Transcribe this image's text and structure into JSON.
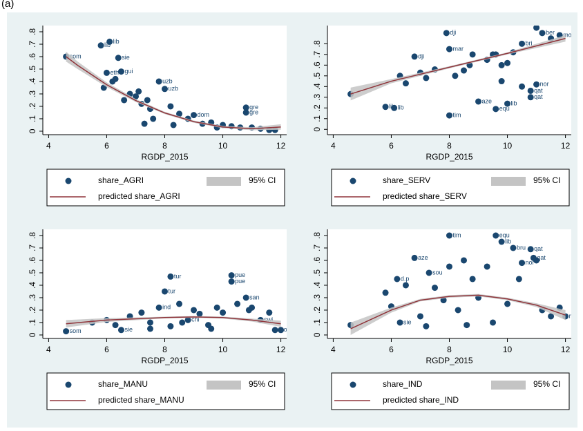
{
  "panel_label": "(a)",
  "chart_data": [
    {
      "type": "scatter",
      "xlabel": "RGDP_2015",
      "xlim": [
        3.8,
        12.2
      ],
      "xticks": [
        4,
        6,
        8,
        10,
        12
      ],
      "ylim": [
        -0.028,
        0.85
      ],
      "yticks": [
        0,
        {
          "value": 0.1,
          "label": ".1"
        },
        {
          "value": 0.2,
          "label": ".2"
        },
        {
          "value": 0.3,
          "label": ".3"
        },
        {
          "value": 0.4,
          "label": ".4"
        },
        {
          "value": 0.5,
          "label": ".5"
        },
        {
          "value": 0.6,
          "label": ".6"
        },
        {
          "value": 0.7,
          "label": ".7"
        },
        {
          "value": 0.8,
          "label": ".8"
        }
      ],
      "series": [
        {
          "type": "scatter",
          "name": "share_AGRI",
          "color": "#1a476f",
          "x": [
            4.6,
            5.8,
            6.1,
            6.4,
            6.0,
            6.5,
            5.9,
            6.2,
            6.8,
            7.0,
            7.2,
            7.5,
            7.8,
            8.0,
            7.3,
            6.6,
            7.6,
            8.2,
            8.5,
            8.8,
            9.0,
            9.3,
            9.6,
            10.0,
            10.3,
            10.6,
            10.8,
            10.8,
            11.0,
            11.3,
            11.6,
            11.8,
            7.1,
            8.3,
            9.8,
            6.3,
            7.4
          ],
          "values": [
            0.6,
            0.69,
            0.72,
            0.59,
            0.47,
            0.48,
            0.35,
            0.4,
            0.3,
            0.28,
            0.22,
            0.18,
            0.4,
            0.34,
            0.06,
            0.25,
            0.1,
            0.2,
            0.14,
            0.1,
            0.13,
            0.06,
            0.07,
            0.05,
            0.04,
            0.03,
            0.19,
            0.15,
            0.03,
            0.02,
            0.01,
            0.01,
            0.32,
            0.05,
            0.03,
            0.42,
            0.25
          ],
          "labels": [
            "som",
            "lib",
            "lib",
            "sie",
            "eth",
            "gui",
            null,
            null,
            null,
            null,
            null,
            null,
            "uzb",
            "uzb",
            null,
            null,
            null,
            null,
            null,
            null,
            "dom",
            null,
            null,
            null,
            null,
            null,
            "gre",
            "gre",
            null,
            null,
            null,
            null,
            null,
            null,
            null,
            null,
            null
          ]
        },
        {
          "type": "area",
          "name": "95% CI",
          "color": "#c4c4c4",
          "x": [
            4.6,
            5,
            6,
            7,
            8,
            9,
            10,
            11,
            12
          ],
          "lower": [
            0.56,
            0.5,
            0.355,
            0.235,
            0.138,
            0.068,
            0.025,
            0.008,
            0.012
          ],
          "upper": [
            0.64,
            0.56,
            0.393,
            0.259,
            0.156,
            0.086,
            0.043,
            0.032,
            0.056
          ]
        },
        {
          "type": "line",
          "name": "predicted share_AGRI",
          "color": "#90353b",
          "x": [
            4.6,
            5,
            6,
            7,
            8,
            9,
            10,
            11,
            12
          ],
          "values": [
            0.6,
            0.53,
            0.374,
            0.247,
            0.147,
            0.077,
            0.034,
            0.02,
            0.034
          ]
        }
      ]
    },
    {
      "type": "scatter",
      "xlabel": "RGDP_2015",
      "xlim": [
        3.8,
        12.2
      ],
      "xticks": [
        4,
        6,
        8,
        10,
        12
      ],
      "ylim": [
        -0.05,
        0.97
      ],
      "yticks": [
        0,
        {
          "value": 0.1,
          "label": ".1"
        },
        {
          "value": 0.2,
          "label": ".2"
        },
        {
          "value": 0.3,
          "label": ".3"
        },
        {
          "value": 0.4,
          "label": ".4"
        },
        {
          "value": 0.5,
          "label": ".5"
        },
        {
          "value": 0.6,
          "label": ".6"
        },
        {
          "value": 0.7,
          "label": ".7"
        },
        {
          "value": 0.8,
          "label": ".8"
        }
      ],
      "series": [
        {
          "type": "scatter",
          "name": "share_SERV",
          "color": "#1a476f",
          "x": [
            4.6,
            5.8,
            6.1,
            6.5,
            6.8,
            7.0,
            7.5,
            7.9,
            8.0,
            8.2,
            8.5,
            8.7,
            9.0,
            9.3,
            9.5,
            9.6,
            9.8,
            10.0,
            10.2,
            10.5,
            10.8,
            11.0,
            11.2,
            11.5,
            11.8,
            8.0,
            9.6,
            10.0,
            9.8,
            10.8,
            11.0,
            6.3,
            7.2,
            8.8,
            10.5
          ],
          "values": [
            0.33,
            0.21,
            0.2,
            0.43,
            0.68,
            0.53,
            0.56,
            0.9,
            0.75,
            0.5,
            0.55,
            0.6,
            0.26,
            0.65,
            0.7,
            0.19,
            0.6,
            0.24,
            0.72,
            0.8,
            0.36,
            0.95,
            0.9,
            0.85,
            0.88,
            0.13,
            0.7,
            0.62,
            0.45,
            0.3,
            0.42,
            0.5,
            0.48,
            0.7,
            0.4
          ],
          "labels": [
            null,
            "lib",
            "lib",
            null,
            "dji",
            null,
            null,
            "dji",
            "mar",
            null,
            null,
            null,
            "aze",
            null,
            null,
            "equ",
            null,
            "lib",
            null,
            "bri",
            "qat",
            null,
            "ber",
            null,
            "mon",
            "tim",
            null,
            null,
            null,
            "qat",
            "nor",
            null,
            null,
            null,
            null
          ]
        },
        {
          "type": "area",
          "name": "95% CI",
          "color": "#c4c4c4",
          "x": [
            4.6,
            6,
            8,
            10,
            12
          ],
          "lower": [
            0.27,
            0.43,
            0.57,
            0.7,
            0.82
          ],
          "upper": [
            0.39,
            0.47,
            0.59,
            0.72,
            0.88
          ]
        },
        {
          "type": "line",
          "name": "predicted share_SERV",
          "color": "#90353b",
          "x": [
            4.6,
            6,
            8,
            10,
            12
          ],
          "values": [
            0.33,
            0.45,
            0.58,
            0.71,
            0.85
          ]
        }
      ]
    },
    {
      "type": "scatter",
      "xlabel": "RGDP_2015",
      "xlim": [
        3.8,
        12.2
      ],
      "xticks": [
        4,
        6,
        8,
        10,
        12
      ],
      "ylim": [
        -0.028,
        0.85
      ],
      "yticks": [
        0,
        {
          "value": 0.1,
          "label": ".1"
        },
        {
          "value": 0.2,
          "label": ".2"
        },
        {
          "value": 0.3,
          "label": ".3"
        },
        {
          "value": 0.4,
          "label": ".4"
        },
        {
          "value": 0.5,
          "label": ".5"
        },
        {
          "value": 0.6,
          "label": ".6"
        },
        {
          "value": 0.7,
          "label": ".7"
        },
        {
          "value": 0.8,
          "label": ".8"
        }
      ],
      "series": [
        {
          "type": "scatter",
          "name": "share_MANU",
          "color": "#1a476f",
          "x": [
            4.6,
            5.5,
            6.0,
            6.3,
            6.8,
            7.2,
            7.5,
            7.8,
            8.0,
            8.2,
            8.5,
            8.8,
            9.0,
            9.2,
            9.5,
            9.8,
            10.0,
            10.3,
            10.3,
            10.5,
            10.8,
            11.0,
            11.3,
            11.6,
            11.8,
            7.5,
            8.2,
            9.6,
            6.5,
            10.9,
            12.0,
            8.6
          ],
          "values": [
            0.03,
            0.1,
            0.12,
            0.08,
            0.15,
            0.18,
            0.1,
            0.22,
            0.35,
            0.47,
            0.25,
            0.12,
            0.2,
            0.17,
            0.08,
            0.22,
            0.18,
            0.48,
            0.43,
            0.25,
            0.3,
            0.22,
            0.12,
            0.18,
            0.04,
            0.05,
            0.07,
            0.05,
            0.04,
            0.2,
            0.04,
            0.1
          ],
          "labels": [
            "som",
            null,
            null,
            null,
            null,
            null,
            null,
            "ind",
            "tur",
            "tur",
            null,
            "chi",
            null,
            null,
            null,
            null,
            null,
            "pue",
            "pue",
            null,
            "san",
            null,
            "swi",
            null,
            "mon",
            null,
            null,
            null,
            "sie",
            null,
            null,
            null
          ]
        },
        {
          "type": "area",
          "name": "95% CI",
          "color": "#c4c4c4",
          "x": [
            4.6,
            6,
            8,
            9,
            10,
            11,
            12
          ],
          "lower": [
            0.06,
            0.105,
            0.133,
            0.138,
            0.132,
            0.108,
            0.065
          ],
          "upper": [
            0.12,
            0.135,
            0.147,
            0.152,
            0.148,
            0.132,
            0.115
          ]
        },
        {
          "type": "line",
          "name": "predicted share_MANU",
          "color": "#90353b",
          "x": [
            4.6,
            6,
            8,
            9,
            10,
            11,
            12
          ],
          "values": [
            0.09,
            0.12,
            0.14,
            0.145,
            0.14,
            0.12,
            0.09
          ]
        }
      ]
    },
    {
      "type": "scatter",
      "xlabel": "RGDP_2015",
      "xlim": [
        3.8,
        12.2
      ],
      "xticks": [
        4,
        6,
        8,
        10,
        12
      ],
      "ylim": [
        -0.028,
        0.85
      ],
      "yticks": [
        0,
        {
          "value": 0.1,
          "label": ".1"
        },
        {
          "value": 0.2,
          "label": ".2"
        },
        {
          "value": 0.3,
          "label": ".3"
        },
        {
          "value": 0.4,
          "label": ".4"
        },
        {
          "value": 0.5,
          "label": ".5"
        },
        {
          "value": 0.6,
          "label": ".6"
        },
        {
          "value": 0.7,
          "label": ".7"
        },
        {
          "value": 0.8,
          "label": ".8"
        }
      ],
      "series": [
        {
          "type": "scatter",
          "name": "share_IND",
          "color": "#1a476f",
          "x": [
            4.6,
            5.8,
            6.0,
            6.2,
            6.5,
            6.8,
            7.0,
            7.3,
            7.5,
            7.8,
            8.0,
            8.0,
            8.3,
            8.5,
            8.8,
            9.0,
            9.3,
            9.6,
            9.8,
            10.0,
            10.2,
            10.5,
            10.8,
            11.0,
            11.2,
            11.5,
            11.8,
            12.0,
            7.2,
            8.6,
            9.5,
            10.4,
            6.3,
            10.9
          ],
          "values": [
            0.08,
            0.34,
            0.23,
            0.45,
            0.4,
            0.62,
            0.15,
            0.5,
            0.38,
            0.28,
            0.8,
            0.55,
            0.2,
            0.6,
            0.45,
            0.3,
            0.55,
            0.8,
            0.75,
            0.25,
            0.7,
            0.58,
            0.69,
            0.6,
            0.2,
            0.15,
            0.22,
            0.15,
            0.07,
            0.08,
            0.1,
            0.45,
            0.1,
            0.62
          ],
          "labels": [
            null,
            null,
            null,
            "d.p",
            null,
            "aze",
            null,
            "sou",
            null,
            null,
            "tim",
            null,
            null,
            null,
            null,
            null,
            null,
            "equ",
            "lib",
            null,
            "bru",
            "nor",
            "qat",
            null,
            null,
            null,
            null,
            "mon",
            null,
            null,
            null,
            null,
            "sie",
            "qat"
          ]
        },
        {
          "type": "area",
          "name": "95% CI",
          "color": "#c4c4c4",
          "x": [
            4.6,
            6,
            7,
            8,
            9,
            10,
            11,
            12
          ],
          "lower": [
            0.0,
            0.18,
            0.27,
            0.3,
            0.31,
            0.28,
            0.225,
            0.12
          ],
          "upper": [
            0.1,
            0.22,
            0.29,
            0.32,
            0.33,
            0.3,
            0.255,
            0.2
          ]
        },
        {
          "type": "line",
          "name": "predicted share_IND",
          "color": "#90353b",
          "x": [
            4.6,
            6,
            7,
            8,
            9,
            10,
            11,
            12
          ],
          "values": [
            0.05,
            0.2,
            0.28,
            0.31,
            0.32,
            0.29,
            0.24,
            0.16
          ]
        }
      ]
    }
  ]
}
